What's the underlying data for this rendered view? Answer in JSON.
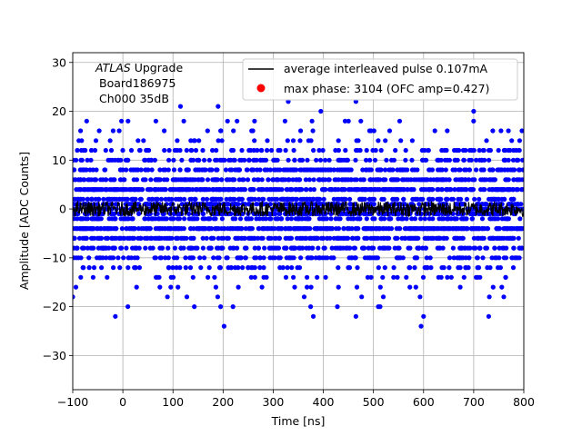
{
  "chart_data": {
    "type": "scatter",
    "xlabel": "Time [ns]",
    "ylabel": "Amplitude [ADC Counts]",
    "xlim": [
      -100,
      800
    ],
    "ylim": [
      -37,
      32
    ],
    "x_ticks": [
      -100,
      0,
      100,
      200,
      300,
      400,
      500,
      600,
      700,
      800
    ],
    "y_ticks": [
      -30,
      -20,
      -10,
      0,
      10,
      20,
      30
    ],
    "x_tick_labels": [
      "−100",
      "0",
      "100",
      "200",
      "300",
      "400",
      "500",
      "600",
      "700",
      "800"
    ],
    "y_tick_labels": [
      "−30",
      "−20",
      "−10",
      "0",
      "10",
      "20",
      "30"
    ],
    "grid": true,
    "annotation": {
      "line1_italic": "ATLAS",
      "line1_rest": " Upgrade",
      "line2": "Board186975",
      "line3": "Ch000 35dB"
    },
    "legend": {
      "placement": "top-right",
      "entries": [
        {
          "label": "average interleaved pulse 0.107mA",
          "color": "#000000",
          "marker": "line"
        },
        {
          "label": "max phase: 3104 (OFC amp=0.427)",
          "color": "#ff0000",
          "marker": "dot"
        }
      ]
    },
    "series": [
      {
        "kind": "scatter",
        "color": "#0000ff",
        "value_levels": [
          -24,
          -22,
          -20,
          -18,
          -16,
          -14,
          -12,
          -10,
          -8,
          -6,
          -4,
          -2,
          -1,
          0,
          1,
          2,
          4,
          6,
          8,
          10,
          12,
          14,
          16,
          18,
          20,
          22
        ],
        "x_range": [
          -100,
          800
        ],
        "outliers": [
          {
            "x": 202,
            "y": -24
          },
          {
            "x": -15,
            "y": -22
          },
          {
            "x": 595,
            "y": -24
          },
          {
            "x": 330,
            "y": 22
          },
          {
            "x": 465,
            "y": 22
          },
          {
            "x": 190,
            "y": 21
          },
          {
            "x": 395,
            "y": 20
          },
          {
            "x": 700,
            "y": 20
          },
          {
            "x": 115,
            "y": 21
          },
          {
            "x": 465,
            "y": -22
          },
          {
            "x": 730,
            "y": -22
          },
          {
            "x": 380,
            "y": -22
          },
          {
            "x": -100,
            "y": -18
          },
          {
            "x": 10,
            "y": -20
          },
          {
            "x": 600,
            "y": -22
          }
        ]
      },
      {
        "kind": "line",
        "name": "average interleaved pulse 0.107mA",
        "color": "#000000",
        "mean": 0,
        "amplitude": 1.5
      }
    ]
  }
}
